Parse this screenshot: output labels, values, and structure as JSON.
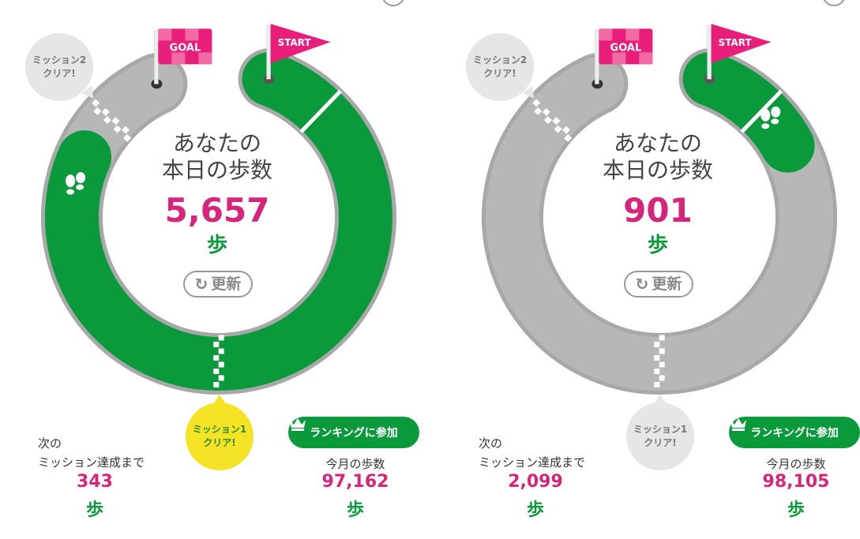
{
  "colors": {
    "green": "#0a9a3c",
    "track_gray": "#b7b7b7",
    "outline_gray": "#a8a8a8",
    "pink": "#d6257a",
    "flag_pink": "#e91e7a",
    "mission_clear_yellow": "#f5e326",
    "mission_pending_gray": "#e6e6e6"
  },
  "panels": [
    {
      "course_progress": 0.87,
      "start_flag": "START",
      "goal_flag": "GOAL",
      "mission2_bubble": {
        "line1": "ミッション2",
        "line2": "クリア!",
        "cleared": false
      },
      "mission1_bubble": {
        "line1": "ミッション1",
        "line2": "クリア!",
        "cleared": true
      },
      "title_line1": "あなたの",
      "title_line2": "本日の歩数",
      "today_steps": "5,657",
      "unit": "歩",
      "refresh_label": "更新",
      "next_label_line1": "次の",
      "next_label_line2": "ミッション達成まで",
      "next_steps": "343",
      "ranking_label": "ランキングに参加",
      "month_label": "今月の歩数",
      "month_steps": "97,162"
    },
    {
      "course_progress": 0.13,
      "start_flag": "START",
      "goal_flag": "GOAL",
      "mission2_bubble": {
        "line1": "ミッション2",
        "line2": "クリア!",
        "cleared": false
      },
      "mission1_bubble": {
        "line1": "ミッション1",
        "line2": "クリア!",
        "cleared": false
      },
      "title_line1": "あなたの",
      "title_line2": "本日の歩数",
      "today_steps": "901",
      "unit": "歩",
      "refresh_label": "更新",
      "next_label_line1": "次の",
      "next_label_line2": "ミッション達成まで",
      "next_steps": "2,099",
      "ranking_label": "ランキングに参加",
      "month_label": "今月の歩数",
      "month_steps": "98,105"
    }
  ]
}
